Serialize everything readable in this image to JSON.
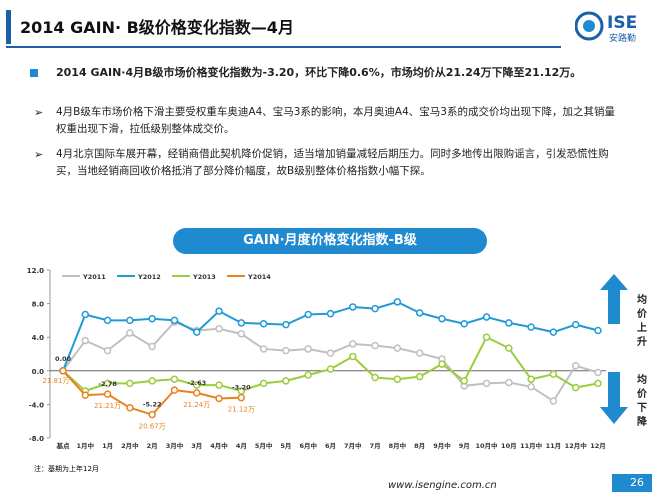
{
  "header": {
    "title": "2014 GAIN· B级价格变化指数—4月",
    "logo": "ISE",
    "logo_sub": "安路勤"
  },
  "bullets": [
    "2014 GAIN·4月B级市场价格变化指数为-3.20，环比下降0.6%，市场均价从21.24万下降至21.12万。",
    "4月B级车市场价格下滑主要受权重车奥迪A4、宝马3系的影响，本月奥迪A4、宝马3系的成交价均出现下降，加之其销量权重出现下滑，拉低级别整体成交价。",
    "4月北京国际车展开幕，经销商借此契机降价促销，适当增加销量减轻后期压力。同时多地传出限购谣言，引发恐慌性购买，当地经销商回收价格抵消了部分降价幅度，故B级别整体价格指数小幅下探。"
  ],
  "chart_data": {
    "type": "line",
    "title": "GAIN·月度价格变化指数-B级",
    "categories": [
      "基点",
      "1月中",
      "1月",
      "2月中",
      "2月",
      "3月中",
      "3月",
      "4月中",
      "4月",
      "5月中",
      "5月",
      "6月中",
      "6月",
      "7月中",
      "7月",
      "8月中",
      "8月",
      "9月中",
      "9月",
      "10月中",
      "10月",
      "11月中",
      "11月",
      "12月中",
      "12月"
    ],
    "ylim": [
      -8,
      12
    ],
    "yticks": [
      {
        "value": 12,
        "label": "12.0"
      },
      {
        "value": 8,
        "label": "8.0"
      },
      {
        "value": 4,
        "label": "4.0"
      },
      {
        "value": 0,
        "label": "0.0"
      },
      {
        "value": -4,
        "label": "-4.0"
      },
      {
        "value": -8,
        "label": "-8.0"
      }
    ],
    "grid": false,
    "series": [
      {
        "name": "Y2011",
        "color": "#c0c0c0",
        "values": [
          0,
          3.6,
          2.4,
          4.5,
          2.9,
          5.8,
          4.8,
          5.0,
          4.4,
          2.6,
          2.4,
          2.6,
          2.1,
          3.2,
          3.0,
          2.7,
          2.1,
          1.4,
          -1.8,
          -1.5,
          -1.4,
          -1.9,
          -3.6,
          0.6,
          -0.2
        ]
      },
      {
        "name": "Y2012",
        "color": "#1f9ad6",
        "values": [
          0,
          6.7,
          6.0,
          6.0,
          6.2,
          6.0,
          4.6,
          7.1,
          5.7,
          5.6,
          5.5,
          6.7,
          6.8,
          7.6,
          7.4,
          8.2,
          6.9,
          6.2,
          5.6,
          6.4,
          5.7,
          5.2,
          4.6,
          5.5,
          4.8
        ]
      },
      {
        "name": "Y2013",
        "color": "#9acd3c",
        "values": [
          0,
          -2.4,
          -1.5,
          -1.5,
          -1.2,
          -1.0,
          -1.7,
          -1.7,
          -2.4,
          -1.5,
          -1.2,
          -0.5,
          0.2,
          1.7,
          -0.8,
          -1.0,
          -0.7,
          0.8,
          -1.2,
          4.0,
          2.7,
          -1.0,
          -0.4,
          -2.0,
          -1.5
        ]
      },
      {
        "name": "Y2014",
        "color": "#e8821e",
        "values": [
          0,
          -2.9,
          -2.78,
          -4.4,
          -5.22,
          -2.3,
          -2.63,
          -3.3,
          -3.2,
          null,
          null,
          null,
          null,
          null,
          null,
          null,
          null,
          null,
          null,
          null,
          null,
          null,
          null,
          null,
          null
        ],
        "value_labels": [
          "0.00",
          null,
          "-2.78",
          null,
          "-5.22",
          null,
          "-2.63",
          null,
          "-3.20",
          null,
          null,
          null,
          null,
          null,
          null,
          null,
          null,
          null,
          null,
          null,
          null,
          null,
          null,
          null,
          null
        ],
        "price_labels": [
          "21.81万",
          null,
          "21.21万",
          null,
          "20.67万",
          null,
          "21.24万",
          null,
          "21.12万",
          null,
          null,
          null,
          null,
          null,
          null,
          null,
          null,
          null,
          null,
          null,
          null,
          null,
          null,
          null,
          null
        ]
      }
    ],
    "side_labels": [
      "均价上升",
      "均价下降"
    ],
    "note": "注：基期为上年12月"
  },
  "footer": {
    "url": "www.isengine.com.cn",
    "page": "26"
  }
}
